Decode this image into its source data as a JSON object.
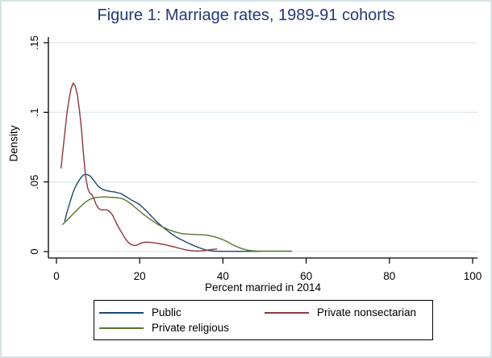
{
  "window": {
    "background": "#ffffff",
    "border_color": "#d6e3e7"
  },
  "chart_data": {
    "type": "line",
    "title": "Figure 1: Marriage rates, 1989-91 cohorts",
    "title_color": "#233778",
    "xlabel": "Percent married in 2014",
    "ylabel": "Density",
    "xlim": [
      0,
      100
    ],
    "ylim": [
      0,
      0.15
    ],
    "xticks": [
      0,
      20,
      40,
      60,
      80,
      100
    ],
    "xtick_labels": [
      "0",
      "20",
      "40",
      "60",
      "80",
      "100"
    ],
    "yticks": [
      0,
      0.05,
      0.1,
      0.15
    ],
    "ytick_labels": [
      "0",
      ".05",
      ".1",
      ".15"
    ],
    "grid": true,
    "grid_color": "#dfeaec",
    "axis_color": "#000000",
    "legend_position": "bottom",
    "series": [
      {
        "name": "Public",
        "color": "#1a476f",
        "points": [
          [
            2,
            0.022
          ],
          [
            2.5,
            0.028
          ],
          [
            3,
            0.033
          ],
          [
            3.5,
            0.038
          ],
          [
            4,
            0.0425
          ],
          [
            4.5,
            0.046
          ],
          [
            5,
            0.049
          ],
          [
            5.5,
            0.0515
          ],
          [
            6,
            0.0535
          ],
          [
            6.5,
            0.055
          ],
          [
            7,
            0.0555
          ],
          [
            7.5,
            0.0552
          ],
          [
            8,
            0.0545
          ],
          [
            8.5,
            0.053
          ],
          [
            9,
            0.051
          ],
          [
            9.5,
            0.049
          ],
          [
            10,
            0.047
          ],
          [
            10.5,
            0.0458
          ],
          [
            11,
            0.0448
          ],
          [
            11.5,
            0.0442
          ],
          [
            12,
            0.0438
          ],
          [
            13,
            0.0432
          ],
          [
            14,
            0.0428
          ],
          [
            15,
            0.042
          ],
          [
            15.5,
            0.0417
          ],
          [
            16,
            0.0408
          ],
          [
            17,
            0.039
          ],
          [
            18,
            0.037
          ],
          [
            19,
            0.0355
          ],
          [
            20,
            0.0338
          ],
          [
            21,
            0.031
          ],
          [
            22,
            0.028
          ],
          [
            23,
            0.0248
          ],
          [
            24,
            0.0218
          ],
          [
            25,
            0.019
          ],
          [
            26,
            0.0165
          ],
          [
            27,
            0.0142
          ],
          [
            28,
            0.012
          ],
          [
            29,
            0.0101
          ],
          [
            30,
            0.0085
          ],
          [
            31,
            0.007
          ],
          [
            32,
            0.0056
          ],
          [
            33,
            0.0043
          ],
          [
            34,
            0.0031
          ],
          [
            35,
            0.002
          ],
          [
            36,
            0.0011
          ],
          [
            37,
            0.0005
          ],
          [
            38,
            0.0003
          ],
          [
            40,
            0.0002
          ],
          [
            43,
            0.0002
          ],
          [
            46,
            0.0002
          ],
          [
            49,
            0.0002
          ]
        ]
      },
      {
        "name": "Private nonsectarian",
        "color": "#90353b",
        "points": [
          [
            1.1,
            0.06
          ],
          [
            1.5,
            0.071
          ],
          [
            2,
            0.085
          ],
          [
            2.5,
            0.099
          ],
          [
            3,
            0.109
          ],
          [
            3.5,
            0.117
          ],
          [
            4,
            0.121
          ],
          [
            4.5,
            0.119
          ],
          [
            5,
            0.113
          ],
          [
            5.5,
            0.102
          ],
          [
            6,
            0.088
          ],
          [
            6.5,
            0.07
          ],
          [
            7,
            0.054
          ],
          [
            7.5,
            0.0455
          ],
          [
            8,
            0.042
          ],
          [
            8.5,
            0.041
          ],
          [
            9,
            0.038
          ],
          [
            9.5,
            0.034
          ],
          [
            10,
            0.0315
          ],
          [
            10.5,
            0.0302
          ],
          [
            11,
            0.0298
          ],
          [
            11.5,
            0.03
          ],
          [
            12,
            0.03
          ],
          [
            12.5,
            0.0295
          ],
          [
            13,
            0.028
          ],
          [
            13.5,
            0.026
          ],
          [
            14,
            0.023
          ],
          [
            14.5,
            0.02
          ],
          [
            15,
            0.017
          ],
          [
            15.5,
            0.0145
          ],
          [
            16,
            0.012
          ],
          [
            16.5,
            0.0095
          ],
          [
            17,
            0.0075
          ],
          [
            17.5,
            0.006
          ],
          [
            18,
            0.005
          ],
          [
            18.5,
            0.0045
          ],
          [
            19,
            0.0044
          ],
          [
            19.5,
            0.0048
          ],
          [
            20,
            0.0056
          ],
          [
            20.5,
            0.0062
          ],
          [
            21,
            0.0066
          ],
          [
            22,
            0.0068
          ],
          [
            23,
            0.0065
          ],
          [
            24,
            0.006
          ],
          [
            25,
            0.0055
          ],
          [
            26,
            0.005
          ],
          [
            27,
            0.0043
          ],
          [
            28,
            0.0036
          ],
          [
            29,
            0.0028
          ],
          [
            30,
            0.002
          ],
          [
            31,
            0.0013
          ],
          [
            32,
            0.0008
          ],
          [
            33,
            0.0005
          ],
          [
            34,
            0.0004
          ],
          [
            35,
            0.0005
          ],
          [
            36,
            0.0009
          ],
          [
            37,
            0.0014
          ],
          [
            38,
            0.0017
          ],
          [
            38.5,
            0.0018
          ]
        ]
      },
      {
        "name": "Private religious",
        "color": "#55752f",
        "points": [
          [
            1.5,
            0.0195
          ],
          [
            2,
            0.021
          ],
          [
            3,
            0.024
          ],
          [
            4,
            0.027
          ],
          [
            5,
            0.03
          ],
          [
            6,
            0.033
          ],
          [
            7,
            0.0355
          ],
          [
            8,
            0.0375
          ],
          [
            9,
            0.0385
          ],
          [
            10,
            0.039
          ],
          [
            11,
            0.0392
          ],
          [
            12,
            0.0392
          ],
          [
            13,
            0.039
          ],
          [
            14,
            0.0388
          ],
          [
            15,
            0.0385
          ],
          [
            16,
            0.0378
          ],
          [
            17,
            0.0362
          ],
          [
            18,
            0.034
          ],
          [
            19,
            0.0315
          ],
          [
            20,
            0.029
          ],
          [
            21,
            0.0265
          ],
          [
            22,
            0.0243
          ],
          [
            23,
            0.0222
          ],
          [
            24,
            0.0202
          ],
          [
            25,
            0.0185
          ],
          [
            26,
            0.017
          ],
          [
            27,
            0.0157
          ],
          [
            28,
            0.0146
          ],
          [
            29,
            0.0137
          ],
          [
            30,
            0.013
          ],
          [
            31,
            0.0126
          ],
          [
            32,
            0.0124
          ],
          [
            33,
            0.0123
          ],
          [
            34,
            0.0122
          ],
          [
            35,
            0.0121
          ],
          [
            36,
            0.0118
          ],
          [
            37,
            0.0113
          ],
          [
            38,
            0.0106
          ],
          [
            39,
            0.0097
          ],
          [
            40,
            0.0086
          ],
          [
            41,
            0.0071
          ],
          [
            42,
            0.0055
          ],
          [
            43,
            0.004
          ],
          [
            44,
            0.0027
          ],
          [
            45,
            0.0017
          ],
          [
            46,
            0.001
          ],
          [
            47,
            0.0006
          ],
          [
            48,
            0.0004
          ],
          [
            50,
            0.0003
          ],
          [
            53,
            0.0003
          ],
          [
            56.5,
            0.0003
          ]
        ]
      }
    ]
  }
}
